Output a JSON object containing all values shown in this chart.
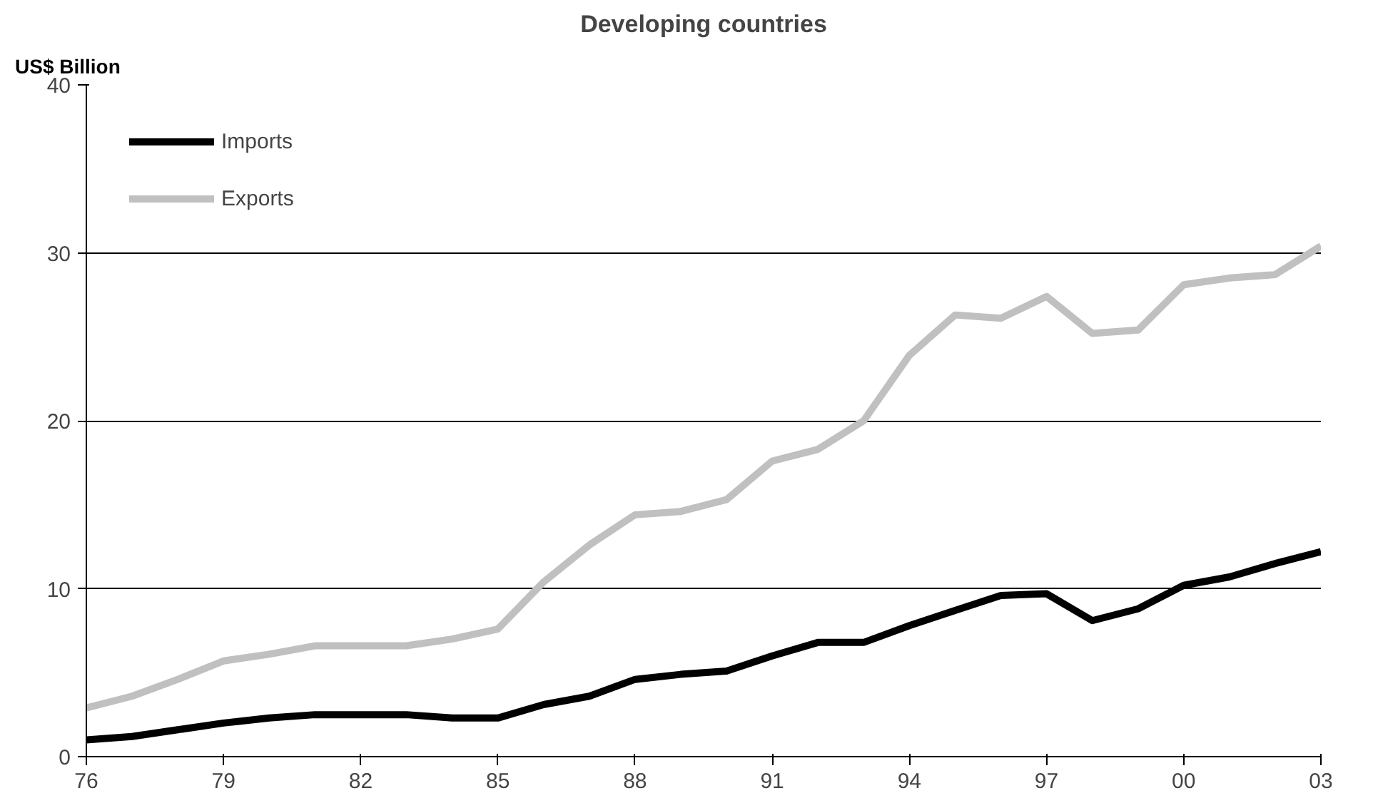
{
  "chart_data": {
    "type": "line",
    "title": "Developing countries",
    "ylabel": "US$ Billion",
    "x": [
      1976,
      1977,
      1978,
      1979,
      1980,
      1981,
      1982,
      1983,
      1984,
      1985,
      1986,
      1987,
      1988,
      1989,
      1990,
      1991,
      1992,
      1993,
      1994,
      1995,
      1996,
      1997,
      1998,
      1999,
      2000,
      2001,
      2002,
      2003
    ],
    "series": [
      {
        "name": "Imports",
        "color": "#000000",
        "values": [
          1.0,
          1.2,
          1.6,
          2.0,
          2.3,
          2.5,
          2.5,
          2.5,
          2.3,
          2.3,
          3.1,
          3.6,
          4.6,
          4.9,
          5.1,
          6.0,
          6.8,
          6.8,
          7.8,
          8.7,
          9.6,
          9.7,
          8.1,
          8.8,
          10.2,
          10.7,
          11.5,
          12.2
        ]
      },
      {
        "name": "Exports",
        "color": "#c0c0c0",
        "values": [
          2.9,
          3.6,
          4.6,
          5.7,
          6.1,
          6.6,
          6.6,
          6.6,
          7.0,
          7.6,
          10.4,
          12.6,
          14.4,
          14.6,
          15.3,
          17.6,
          18.3,
          20.0,
          23.9,
          26.3,
          26.1,
          27.4,
          25.2,
          25.4,
          28.1,
          28.5,
          28.7,
          30.4
        ]
      }
    ],
    "xlim": [
      1976,
      2003
    ],
    "xticks": [
      {
        "value": 1976,
        "label": "76"
      },
      {
        "value": 1979,
        "label": "79"
      },
      {
        "value": 1982,
        "label": "82"
      },
      {
        "value": 1985,
        "label": "85"
      },
      {
        "value": 1988,
        "label": "88"
      },
      {
        "value": 1991,
        "label": "91"
      },
      {
        "value": 1994,
        "label": "94"
      },
      {
        "value": 1997,
        "label": "97"
      },
      {
        "value": 2000,
        "label": "00"
      },
      {
        "value": 2003,
        "label": "03"
      }
    ],
    "ylim": [
      0,
      40
    ],
    "yticks": [
      0,
      10,
      20,
      30,
      40
    ],
    "grid": "y",
    "legend": "top left",
    "marker": "none",
    "line_style": "solid"
  }
}
